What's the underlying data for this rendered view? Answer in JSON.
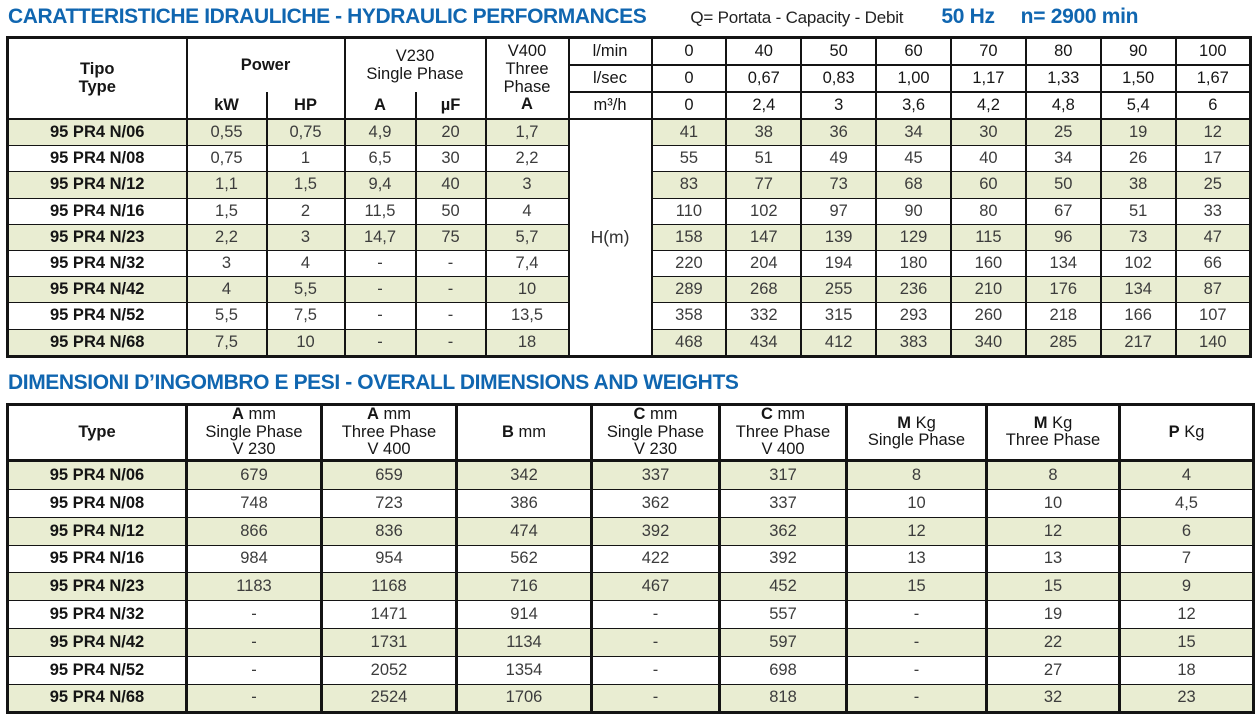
{
  "colors": {
    "accent_blue": "#1066b0",
    "stripe_green": "#e9edd2",
    "border_black": "#141414"
  },
  "header": {
    "title": "CARATTERISTICHE IDRAULICHE - HYDRAULIC PERFORMANCES",
    "q_legend": "Q= Portata - Capacity - Debit",
    "frequency": "50 Hz",
    "speed": "n= 2900 min"
  },
  "section2_title": "DIMENSIONI D’INGOMBRO E PESI - OVERALL DIMENSIONS AND WEIGHTS",
  "hydraulic_table": {
    "header": {
      "tipo": "Tipo",
      "type": "Type",
      "power": "Power",
      "kw": "kW",
      "hp": "HP",
      "v230_line1": "V230",
      "v230_line2": "Single Phase",
      "a": "A",
      "uf": "µF",
      "v400_line1": "V400",
      "v400_line2": "Three",
      "v400_line3": "Phase",
      "v400_a": "A",
      "unit_lmin": "l/min",
      "unit_lsec": "l/sec",
      "unit_m3h": "m³/h",
      "h_label": "H(m)",
      "flow_lmin": [
        "0",
        "40",
        "50",
        "60",
        "70",
        "80",
        "90",
        "100"
      ],
      "flow_lsec": [
        "0",
        "0,67",
        "0,83",
        "1,00",
        "1,17",
        "1,33",
        "1,50",
        "1,67"
      ],
      "flow_m3h": [
        "0",
        "2,4",
        "3",
        "3,6",
        "4,2",
        "4,8",
        "5,4",
        "6"
      ]
    },
    "rows": [
      {
        "type": "95 PR4 N/06",
        "kw": "0,55",
        "hp": "0,75",
        "a": "4,9",
        "uf": "20",
        "a400": "1,7",
        "h": [
          "41",
          "38",
          "36",
          "34",
          "30",
          "25",
          "19",
          "12"
        ]
      },
      {
        "type": "95 PR4 N/08",
        "kw": "0,75",
        "hp": "1",
        "a": "6,5",
        "uf": "30",
        "a400": "2,2",
        "h": [
          "55",
          "51",
          "49",
          "45",
          "40",
          "34",
          "26",
          "17"
        ]
      },
      {
        "type": "95 PR4 N/12",
        "kw": "1,1",
        "hp": "1,5",
        "a": "9,4",
        "uf": "40",
        "a400": "3",
        "h": [
          "83",
          "77",
          "73",
          "68",
          "60",
          "50",
          "38",
          "25"
        ]
      },
      {
        "type": "95 PR4 N/16",
        "kw": "1,5",
        "hp": "2",
        "a": "11,5",
        "uf": "50",
        "a400": "4",
        "h": [
          "110",
          "102",
          "97",
          "90",
          "80",
          "67",
          "51",
          "33"
        ]
      },
      {
        "type": "95 PR4 N/23",
        "kw": "2,2",
        "hp": "3",
        "a": "14,7",
        "uf": "75",
        "a400": "5,7",
        "h": [
          "158",
          "147",
          "139",
          "129",
          "115",
          "96",
          "73",
          "47"
        ]
      },
      {
        "type": "95 PR4 N/32",
        "kw": "3",
        "hp": "4",
        "a": "-",
        "uf": "-",
        "a400": "7,4",
        "h": [
          "220",
          "204",
          "194",
          "180",
          "160",
          "134",
          "102",
          "66"
        ]
      },
      {
        "type": "95 PR4 N/42",
        "kw": "4",
        "hp": "5,5",
        "a": "-",
        "uf": "-",
        "a400": "10",
        "h": [
          "289",
          "268",
          "255",
          "236",
          "210",
          "176",
          "134",
          "87"
        ]
      },
      {
        "type": "95 PR4 N/52",
        "kw": "5,5",
        "hp": "7,5",
        "a": "-",
        "uf": "-",
        "a400": "13,5",
        "h": [
          "358",
          "332",
          "315",
          "293",
          "260",
          "218",
          "166",
          "107"
        ]
      },
      {
        "type": "95 PR4 N/68",
        "kw": "7,5",
        "hp": "10",
        "a": "-",
        "uf": "-",
        "a400": "18",
        "h": [
          "468",
          "434",
          "412",
          "383",
          "340",
          "285",
          "217",
          "140"
        ]
      }
    ]
  },
  "dimensions_table": {
    "headers": [
      {
        "letter": "Type",
        "unit": "",
        "line2": "",
        "line3": ""
      },
      {
        "letter": "A",
        "unit": " mm",
        "line2": "Single Phase",
        "line3": "V 230"
      },
      {
        "letter": "A",
        "unit": " mm",
        "line2": "Three Phase",
        "line3": "V 400"
      },
      {
        "letter": "B",
        "unit": " mm",
        "line2": "",
        "line3": ""
      },
      {
        "letter": "C",
        "unit": " mm",
        "line2": "Single Phase",
        "line3": "V 230"
      },
      {
        "letter": "C",
        "unit": " mm",
        "line2": "Three Phase",
        "line3": "V 400"
      },
      {
        "letter": "M",
        "unit": " Kg",
        "line2": "Single Phase",
        "line3": ""
      },
      {
        "letter": "M",
        "unit": " Kg",
        "line2": "Three Phase",
        "line3": ""
      },
      {
        "letter": "P",
        "unit": " Kg",
        "line2": "",
        "line3": ""
      }
    ],
    "rows": [
      {
        "type": "95 PR4 N/06",
        "values": [
          "679",
          "659",
          "342",
          "337",
          "317",
          "8",
          "8",
          "4"
        ]
      },
      {
        "type": "95 PR4 N/08",
        "values": [
          "748",
          "723",
          "386",
          "362",
          "337",
          "10",
          "10",
          "4,5"
        ]
      },
      {
        "type": "95 PR4 N/12",
        "values": [
          "866",
          "836",
          "474",
          "392",
          "362",
          "12",
          "12",
          "6"
        ]
      },
      {
        "type": "95 PR4 N/16",
        "values": [
          "984",
          "954",
          "562",
          "422",
          "392",
          "13",
          "13",
          "7"
        ]
      },
      {
        "type": "95 PR4 N/23",
        "values": [
          "1183",
          "1168",
          "716",
          "467",
          "452",
          "15",
          "15",
          "9"
        ]
      },
      {
        "type": "95 PR4 N/32",
        "values": [
          "-",
          "1471",
          "914",
          "-",
          "557",
          "-",
          "19",
          "12"
        ]
      },
      {
        "type": "95 PR4 N/42",
        "values": [
          "-",
          "1731",
          "1134",
          "-",
          "597",
          "-",
          "22",
          "15"
        ]
      },
      {
        "type": "95 PR4 N/52",
        "values": [
          "-",
          "2052",
          "1354",
          "-",
          "698",
          "-",
          "27",
          "18"
        ]
      },
      {
        "type": "95 PR4 N/68",
        "values": [
          "-",
          "2524",
          "1706",
          "-",
          "818",
          "-",
          "32",
          "23"
        ]
      }
    ]
  }
}
